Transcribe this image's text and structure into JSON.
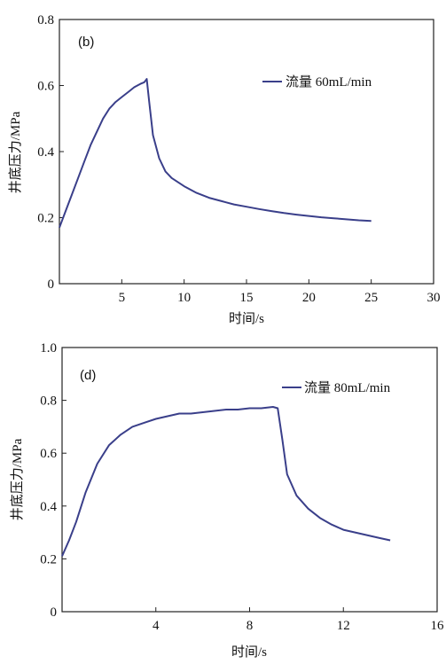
{
  "chart_data": [
    {
      "type": "line",
      "panel_label": "(b)",
      "xlabel": "时间/s",
      "ylabel": "井底压力/MPa",
      "xlim": [
        0,
        30
      ],
      "ylim": [
        0,
        0.8
      ],
      "xticks": [
        5,
        10,
        15,
        20,
        25,
        30
      ],
      "xtick_labels": [
        "5",
        "10",
        "15",
        "20",
        "25",
        "30"
      ],
      "yticks": [
        0,
        0.2,
        0.4,
        0.6,
        0.8
      ],
      "ytick_labels": [
        "0",
        "0.2",
        "0.4",
        "0.6",
        "0.8"
      ],
      "legend_position": "top-right",
      "line_color": "#3a3f8a",
      "series": [
        {
          "name": "流量 60mL/min",
          "x": [
            0,
            0.5,
            1,
            1.5,
            2,
            2.5,
            3,
            3.5,
            4,
            4.5,
            5,
            5.5,
            6,
            6.5,
            6.8,
            7.0,
            7.2,
            7.5,
            8,
            8.5,
            9,
            10,
            11,
            12,
            13,
            14,
            15,
            16,
            17,
            18,
            19,
            20,
            21,
            22,
            23,
            24,
            25
          ],
          "y": [
            0.17,
            0.22,
            0.27,
            0.32,
            0.37,
            0.42,
            0.46,
            0.5,
            0.53,
            0.55,
            0.565,
            0.58,
            0.595,
            0.605,
            0.61,
            0.62,
            0.55,
            0.45,
            0.38,
            0.34,
            0.32,
            0.295,
            0.275,
            0.26,
            0.25,
            0.24,
            0.233,
            0.226,
            0.22,
            0.214,
            0.209,
            0.205,
            0.201,
            0.198,
            0.195,
            0.192,
            0.19
          ]
        }
      ]
    },
    {
      "type": "line",
      "panel_label": "(d)",
      "xlabel": "时间/s",
      "ylabel": "井底压力/MPa",
      "xlim": [
        0,
        16
      ],
      "ylim": [
        0,
        1.0
      ],
      "xticks": [
        4,
        8,
        12,
        16
      ],
      "xtick_labels": [
        "4",
        "8",
        "12",
        "16"
      ],
      "yticks": [
        0,
        0.2,
        0.4,
        0.6,
        0.8,
        1.0
      ],
      "ytick_labels": [
        "0",
        "0.2",
        "0.4",
        "0.6",
        "0.8",
        "1.0"
      ],
      "legend_position": "top-right",
      "line_color": "#3a3f8a",
      "series": [
        {
          "name": "流量 80mL/min",
          "x": [
            0,
            0.3,
            0.6,
            1,
            1.5,
            2,
            2.5,
            3,
            3.5,
            4,
            4.5,
            5,
            5.5,
            6,
            6.5,
            7,
            7.5,
            8,
            8.5,
            9,
            9.2,
            9.4,
            9.6,
            10,
            10.5,
            11,
            11.5,
            12,
            12.5,
            13,
            13.5,
            14
          ],
          "y": [
            0.21,
            0.27,
            0.34,
            0.45,
            0.56,
            0.63,
            0.67,
            0.7,
            0.715,
            0.73,
            0.74,
            0.75,
            0.75,
            0.755,
            0.76,
            0.765,
            0.765,
            0.77,
            0.77,
            0.775,
            0.77,
            0.65,
            0.52,
            0.44,
            0.39,
            0.355,
            0.33,
            0.31,
            0.3,
            0.29,
            0.28,
            0.27
          ]
        }
      ]
    }
  ]
}
